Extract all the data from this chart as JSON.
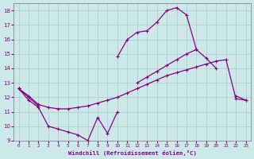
{
  "xlabel": "Windchill (Refroidissement éolien,°C)",
  "background_color": "#cce8e8",
  "grid_color": "#aacccc",
  "line_color": "#880088",
  "ylim": [
    9,
    18.5
  ],
  "xlim": [
    -0.5,
    23.5
  ],
  "yticks": [
    9,
    10,
    11,
    12,
    13,
    14,
    15,
    16,
    17,
    18
  ],
  "xticks": [
    0,
    1,
    2,
    3,
    4,
    5,
    6,
    7,
    8,
    9,
    10,
    11,
    12,
    13,
    14,
    15,
    16,
    17,
    18,
    19,
    20,
    21,
    22,
    23
  ],
  "line_top": [
    12.6,
    null,
    null,
    null,
    null,
    null,
    null,
    null,
    null,
    null,
    14.8,
    16.0,
    16.5,
    16.6,
    17.2,
    18.0,
    18.2,
    17.7,
    15.3,
    null,
    null,
    null,
    null,
    null
  ],
  "line_mid_upper": [
    12.6,
    12.0,
    11.4,
    null,
    null,
    null,
    null,
    null,
    null,
    null,
    null,
    null,
    13.0,
    13.4,
    13.8,
    14.2,
    14.6,
    15.0,
    15.3,
    14.7,
    14.0,
    null,
    12.1,
    11.8
  ],
  "line_mid_lower": [
    12.6,
    12.1,
    11.5,
    11.3,
    11.2,
    11.2,
    11.3,
    11.4,
    11.6,
    11.8,
    12.0,
    12.3,
    12.6,
    12.9,
    13.2,
    13.5,
    13.7,
    13.9,
    14.1,
    14.3,
    14.5,
    14.6,
    11.9,
    11.8
  ],
  "line_bottom": [
    12.6,
    11.8,
    11.3,
    10.0,
    9.8,
    9.6,
    9.4,
    9.0,
    10.6,
    9.5,
    11.0,
    null,
    null,
    null,
    null,
    null,
    null,
    null,
    null,
    null,
    null,
    null,
    null,
    null
  ]
}
